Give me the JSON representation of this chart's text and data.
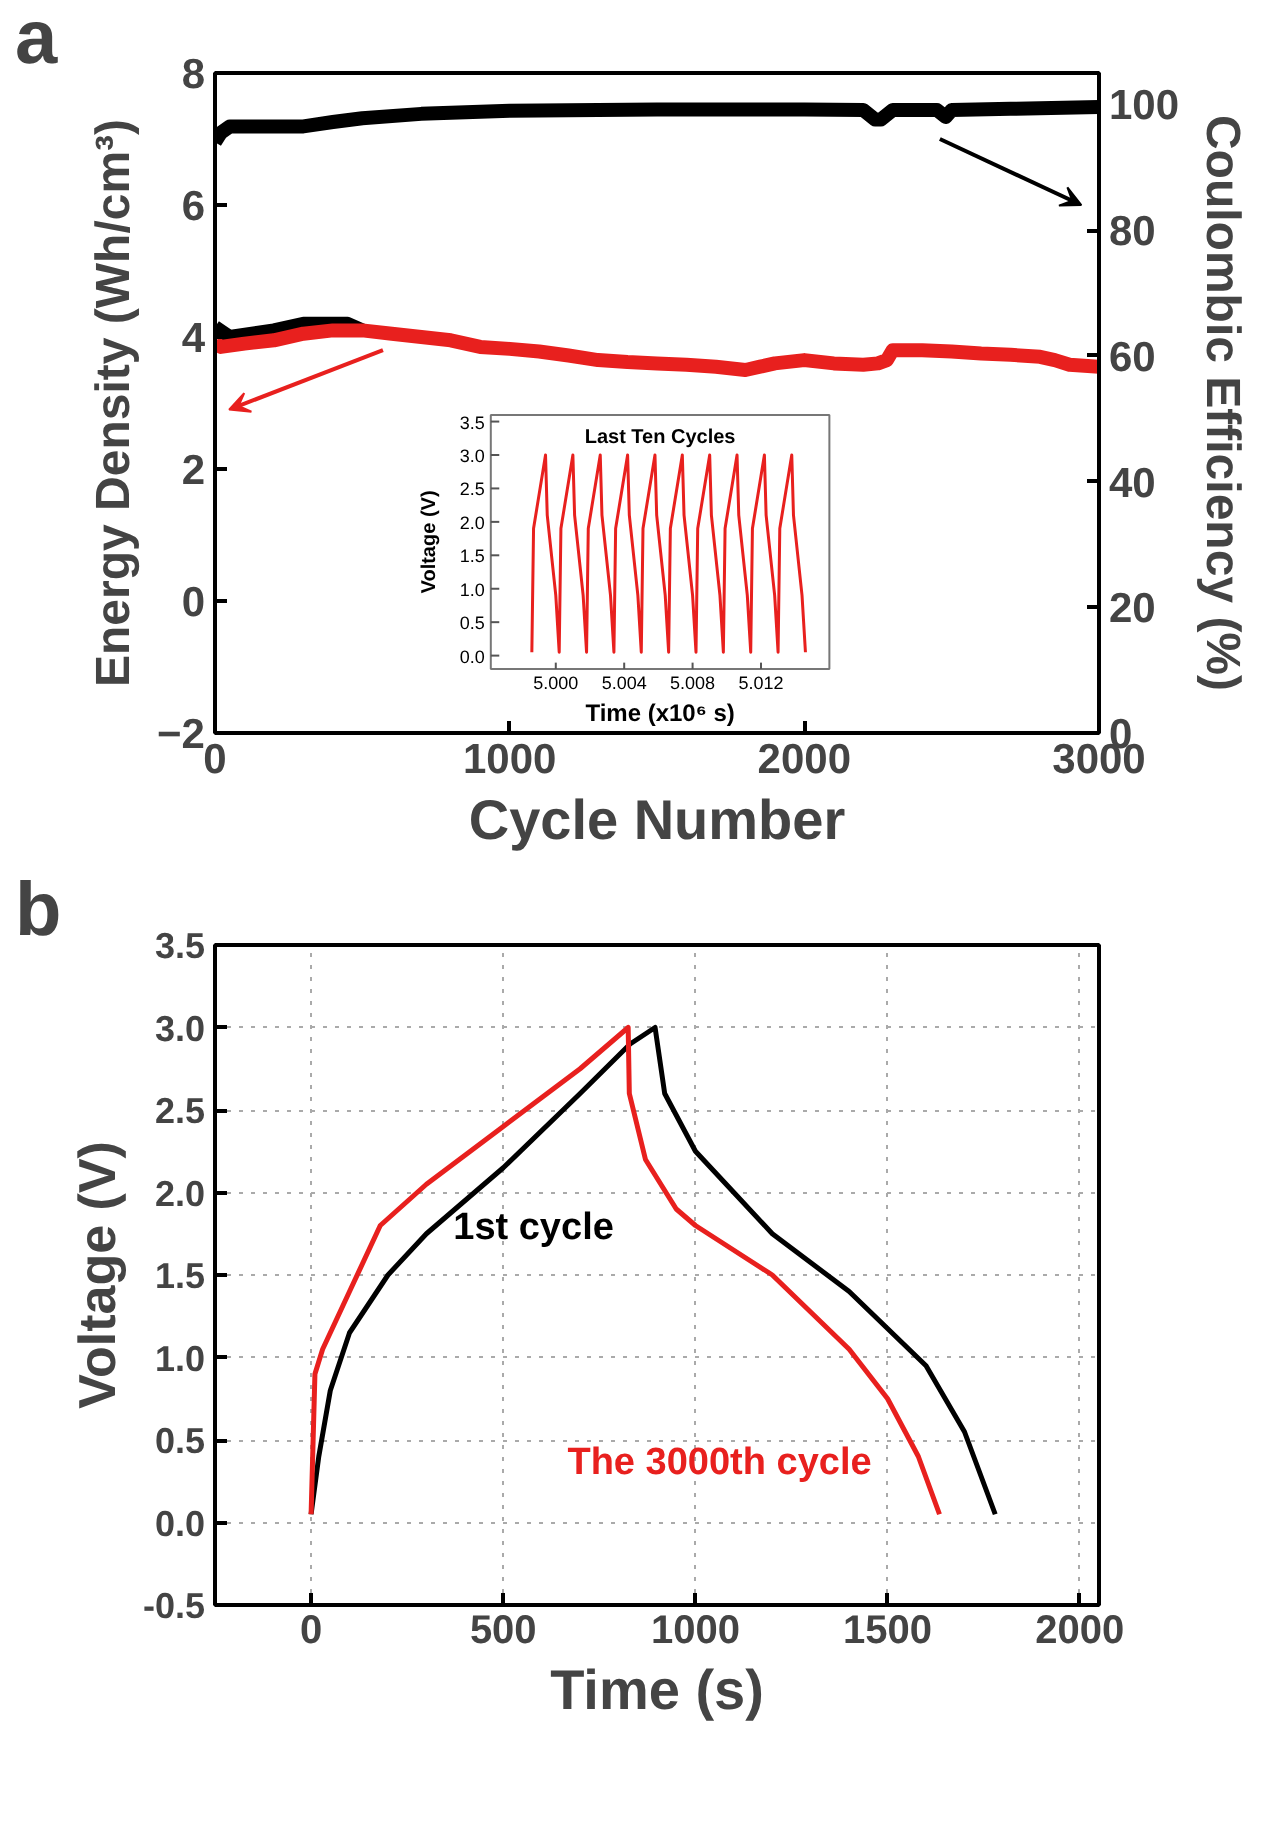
{
  "chart_data": [
    {
      "type": "line",
      "annotations": [
        "a"
      ],
      "xlabel": "Cycle Number",
      "ylabel": "Energy Density (Wh/cm³)",
      "y2label": "Coulombic Efficiency (%)",
      "xlim": [
        0,
        3000
      ],
      "xticks": [
        0,
        1000,
        2000,
        3000
      ],
      "ylim": [
        -2,
        8
      ],
      "yticks": [
        -2,
        0,
        2,
        4,
        6,
        8
      ],
      "y2lim": [
        0,
        105
      ],
      "y2ticks": [
        0,
        20,
        40,
        60,
        80,
        100
      ],
      "marker": "none",
      "series": [
        {
          "color": "#000000",
          "x": [
            0,
            50,
            200,
            300,
            450,
            500
          ],
          "values": [
            4.15,
            4.0,
            4.1,
            4.2,
            4.2,
            4.1
          ]
        },
        {
          "color": "#e8201e",
          "x": [
            0,
            20,
            100,
            200,
            300,
            400,
            500,
            600,
            700,
            800,
            900,
            1000,
            1100,
            1200,
            1300,
            1400,
            1500,
            1600,
            1700,
            1800,
            1850,
            1900,
            2000,
            2100,
            2200,
            2250,
            2280,
            2300,
            2400,
            2500,
            2600,
            2700,
            2800,
            2850,
            2900,
            3000
          ],
          "values": [
            3.9,
            3.85,
            3.9,
            3.95,
            4.05,
            4.1,
            4.1,
            4.05,
            4.0,
            3.95,
            3.85,
            3.82,
            3.78,
            3.72,
            3.65,
            3.62,
            3.6,
            3.58,
            3.55,
            3.5,
            3.55,
            3.6,
            3.65,
            3.6,
            3.58,
            3.6,
            3.65,
            3.8,
            3.8,
            3.78,
            3.75,
            3.73,
            3.7,
            3.65,
            3.58,
            3.55
          ]
        },
        {
          "color": "#000000",
          "axis": "y2",
          "x": [
            0,
            20,
            50,
            200,
            300,
            400,
            500,
            700,
            1000,
            1500,
            2000,
            2200,
            2240,
            2260,
            2300,
            2450,
            2480,
            2500,
            2700,
            3000
          ],
          "values": [
            94,
            95.5,
            96.5,
            96.5,
            96.5,
            97.2,
            97.8,
            98.5,
            99.0,
            99.2,
            99.2,
            99.1,
            97.6,
            97.6,
            99.1,
            99.1,
            98.0,
            99.1,
            99.3,
            99.6
          ]
        }
      ]
    },
    {
      "type": "line",
      "title": "Last Ten Cycles",
      "xlabel": "Time (x10⁶ s)",
      "ylabel": "Voltage (V)",
      "xlim": [
        4.9962,
        5.016
      ],
      "xticks": [
        {
          "value": 5.0,
          "label": "5.000"
        },
        5.004,
        5.008,
        5.012
      ],
      "ylim": [
        -0.2,
        3.6
      ],
      "yticks": [
        {
          "value": 0,
          "label": "0.0"
        },
        0.5,
        {
          "value": 1,
          "label": "1.0"
        },
        1.5,
        {
          "value": 2,
          "label": "2.0"
        },
        2.5,
        {
          "value": 3,
          "label": "3.0"
        },
        3.5
      ],
      "marker": "none",
      "series": [
        {
          "color": "#e8201e",
          "x": [
            4.9986,
            4.9987,
            4.9994,
            4.9995,
            5.0,
            5.0002,
            5.0003,
            5.001,
            5.0011,
            5.0016,
            5.0018,
            5.0019,
            5.0026,
            5.0027,
            5.0032,
            5.0034,
            5.0035,
            5.0042,
            5.0043,
            5.0048,
            5.005,
            5.0051,
            5.0058,
            5.0059,
            5.0064,
            5.0066,
            5.0067,
            5.0074,
            5.0075,
            5.008,
            5.0082,
            5.0083,
            5.009,
            5.0091,
            5.0096,
            5.0098,
            5.0099,
            5.0106,
            5.0107,
            5.0112,
            5.0114,
            5.0115,
            5.0122,
            5.0123,
            5.0128,
            5.013,
            5.0131,
            5.0138,
            5.0139,
            5.0144,
            5.0146
          ],
          "values": [
            0.05,
            1.9,
            3.0,
            2.1,
            0.9,
            0.05,
            1.9,
            3.0,
            2.1,
            0.9,
            0.05,
            1.9,
            3.0,
            2.1,
            0.9,
            0.05,
            1.9,
            3.0,
            2.1,
            0.9,
            0.05,
            1.9,
            3.0,
            2.1,
            0.9,
            0.05,
            1.9,
            3.0,
            2.1,
            0.9,
            0.05,
            1.9,
            3.0,
            2.1,
            0.9,
            0.05,
            1.9,
            3.0,
            2.1,
            0.9,
            0.05,
            1.9,
            3.0,
            2.1,
            0.9,
            0.05,
            1.9,
            3.0,
            2.1,
            0.9,
            0.05
          ]
        }
      ]
    },
    {
      "type": "line",
      "annotations": [
        "b"
      ],
      "xlabel": "Time (s)",
      "ylabel": "Voltage (V)",
      "xlim": [
        -250,
        2050
      ],
      "xticks": [
        0,
        500,
        1000,
        1500,
        2000
      ],
      "ylim": [
        -0.5,
        3.5
      ],
      "yticks": [
        {
          "value": -0.5,
          "label": "-0.5"
        },
        {
          "value": 0,
          "label": "0.0"
        },
        0.5,
        {
          "value": 1,
          "label": "1.0"
        },
        1.5,
        {
          "value": 2,
          "label": "2.0"
        },
        2.5,
        {
          "value": 3,
          "label": "3.0"
        },
        3.5
      ],
      "grid": true,
      "marker": "none",
      "series": [
        {
          "name": "1st cycle",
          "color": "#000000",
          "x": [
            0,
            20,
            50,
            100,
            200,
            300,
            500,
            700,
            830,
            895,
            920,
            1000,
            1100,
            1200,
            1400,
            1600,
            1700,
            1780
          ],
          "values": [
            0.05,
            0.4,
            0.8,
            1.15,
            1.5,
            1.75,
            2.15,
            2.6,
            2.9,
            3.0,
            2.6,
            2.25,
            2.0,
            1.75,
            1.4,
            0.95,
            0.55,
            0.05
          ]
        },
        {
          "name": "The 3000th cycle",
          "color": "#e8201e",
          "x": [
            0,
            10,
            30,
            100,
            180,
            300,
            500,
            700,
            825,
            828,
            870,
            950,
            1000,
            1200,
            1400,
            1500,
            1580,
            1635
          ],
          "values": [
            0.05,
            0.9,
            1.05,
            1.4,
            1.8,
            2.05,
            2.4,
            2.75,
            3.0,
            2.6,
            2.2,
            1.9,
            1.8,
            1.5,
            1.05,
            0.75,
            0.4,
            0.05
          ]
        }
      ]
    }
  ]
}
